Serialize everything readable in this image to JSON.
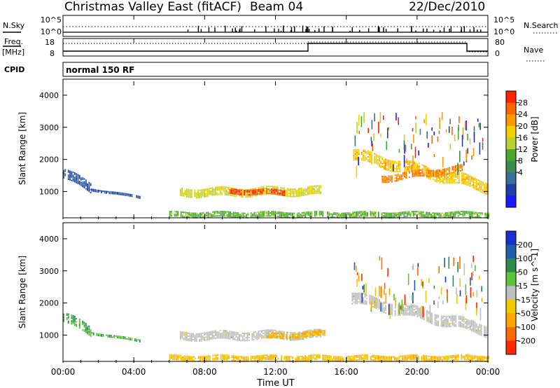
{
  "header": {
    "title": "Christmas Valley East (fitACF)",
    "beam": "Beam 04",
    "date": "22/Dec/2010"
  },
  "ctrl": {
    "nsky_label": "N.Sky",
    "nsearch_label": "N.Search",
    "noise_ticks": [
      "10^5",
      "10^0"
    ],
    "freq_label": "Freq.",
    "freq_unit": "[MHz]",
    "freq_ticks": [
      "18",
      "8"
    ],
    "nave_label": "Nave",
    "nave_ticks": [
      "80",
      "0"
    ],
    "cpid_label": "CPID",
    "cpid_value": "normal 150 RF"
  },
  "axes": {
    "xlabel": "Time UT",
    "ylabel": "Slant Range [km]",
    "xticks": [
      "00:00",
      "04:00",
      "08:00",
      "12:00",
      "16:00",
      "20:00",
      "00:00"
    ],
    "yticks": [
      "1000",
      "2000",
      "3000",
      "4000"
    ]
  },
  "colorbars": {
    "power": {
      "label": "Power [dB]",
      "ticks": [
        "4",
        "8",
        "12",
        "16",
        "20",
        "24",
        "28"
      ],
      "colors": [
        "#1a1aff",
        "#1f3fa8",
        "#3a6f9a",
        "#3c8a4e",
        "#4aa830",
        "#b7d234",
        "#f0d000",
        "#ff9900",
        "#ff6600",
        "#ff2200"
      ]
    },
    "velocity": {
      "label": "Velocity [m s^-1]",
      "ticks": [
        "200",
        "100",
        "50",
        "15",
        "-15",
        "-50",
        "-100",
        "-200"
      ],
      "colors": [
        "#1a2fcf",
        "#1f5fa8",
        "#2e8a4a",
        "#5cc33a",
        "#bfbfbf",
        "#f2c800",
        "#ffa500",
        "#ff6a00",
        "#ff2a00"
      ]
    }
  },
  "chart_data": {
    "type": "heatmap",
    "title": "Christmas Valley East (fitACF)",
    "xlabel": "Time UT",
    "ylabel": "Slant Range [km]",
    "xlim": [
      0,
      24
    ],
    "ylim": [
      180,
      4500
    ],
    "panels": [
      {
        "name": "Power",
        "unit": "dB",
        "zlim": [
          0,
          30
        ],
        "regions": [
          {
            "t": [
              0.0,
              1.6
            ],
            "r0": [
              1550,
              1100
            ],
            "half_width": 150,
            "value": 6
          },
          {
            "t": [
              1.6,
              4.3
            ],
            "r0": [
              1050,
              820
            ],
            "half_width": 40,
            "value": 5
          },
          {
            "t": [
              6.6,
              14.6
            ],
            "r0": [
              950,
              1000
            ],
            "half_width": 120,
            "value": 18
          },
          {
            "t": [
              9.4,
              12.5
            ],
            "r0": [
              1000,
              950
            ],
            "half_width": 80,
            "value": 27
          },
          {
            "t": [
              6.0,
              24.0
            ],
            "r0": [
              260,
              260
            ],
            "half_width": 70,
            "value": 14
          },
          {
            "t": [
              16.3,
              24.0
            ],
            "r0": [
              2150,
              1150
            ],
            "half_width": 180,
            "value": 20
          },
          {
            "t": [
              18.0,
              22.5
            ],
            "r0": [
              1400,
              1700
            ],
            "half_width": 110,
            "value": 24
          }
        ]
      },
      {
        "name": "Velocity",
        "unit": "m s^-1",
        "zlim": [
          -200,
          200
        ],
        "regions": [
          {
            "t": [
              0.0,
              1.6
            ],
            "r0": [
              1550,
              1100
            ],
            "half_width": 150,
            "value": 60
          },
          {
            "t": [
              1.6,
              4.3
            ],
            "r0": [
              1050,
              820
            ],
            "half_width": 40,
            "value": 60
          },
          {
            "t": [
              6.6,
              14.6
            ],
            "r0": [
              950,
              1000
            ],
            "half_width": 120,
            "value": 0
          },
          {
            "t": [
              11.5,
              14.8
            ],
            "r0": [
              950,
              1050
            ],
            "half_width": 90,
            "value": -70
          },
          {
            "t": [
              6.0,
              24.0
            ],
            "r0": [
              260,
              260
            ],
            "half_width": 70,
            "value": -60
          },
          {
            "t": [
              16.3,
              24.0
            ],
            "r0": [
              2150,
              1150
            ],
            "half_width": 180,
            "value": 0
          }
        ]
      }
    ]
  }
}
